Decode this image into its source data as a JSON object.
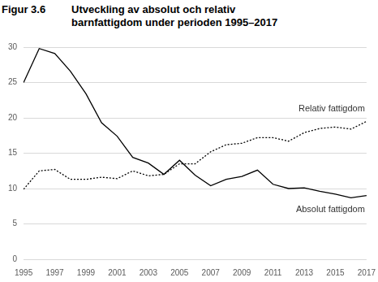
{
  "chart_data": {
    "type": "line",
    "figure_label": "Figur 3.6",
    "title": "Utveckling av absolut och relativ barnfattigdom under perioden 1995–2017",
    "categories": [
      "1995",
      null,
      "1997",
      null,
      "1999",
      null,
      "2001",
      null,
      "2003",
      null,
      "2005",
      null,
      "2007",
      null,
      "2009",
      null,
      "2011",
      null,
      "2013",
      null,
      "2015",
      null,
      "2017"
    ],
    "series": [
      {
        "name": "Relativ fattigdom",
        "color": "#000000",
        "line_style": "dotted",
        "marker": "none",
        "values": [
          9.9,
          12.5,
          12.7,
          11.3,
          11.3,
          11.6,
          11.4,
          12.5,
          11.8,
          12.0,
          13.5,
          13.5,
          15.2,
          16.2,
          16.4,
          17.2,
          17.2,
          16.7,
          17.9,
          18.5,
          18.7,
          18.4,
          19.5
        ]
      },
      {
        "name": "Absolut fattigdom",
        "color": "#000000",
        "line_style": "solid",
        "marker": "none",
        "values": [
          25.0,
          29.8,
          29.1,
          26.6,
          23.4,
          19.3,
          17.4,
          14.4,
          13.6,
          12.0,
          14.0,
          11.9,
          10.4,
          11.3,
          11.7,
          12.6,
          10.6,
          10.0,
          10.1,
          9.6,
          9.2,
          8.7,
          9.0
        ]
      }
    ],
    "ylim": [
      0,
      30
    ],
    "yticks": [
      0,
      5,
      10,
      15,
      20,
      25,
      30
    ],
    "grid": true
  }
}
